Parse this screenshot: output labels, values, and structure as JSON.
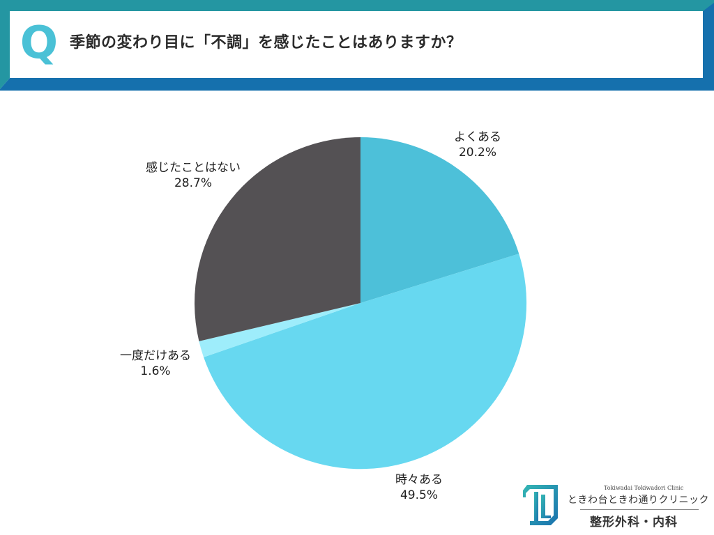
{
  "header": {
    "q_mark": "Q",
    "question": "季節の変わり目に「不調」を感じたことはありますか？",
    "colors": {
      "top_band": "#2496A2",
      "bottom_band": "#1570AD",
      "q_color": "#4AC1D6"
    }
  },
  "chart_data": {
    "type": "pie",
    "title": "季節の変わり目に「不調」を感じたことはありますか？",
    "start_angle": "12 o'clock, clockwise",
    "categories": [
      "よくある",
      "時々ある",
      "一度だけある",
      "感じたことはない"
    ],
    "values": [
      20.2,
      49.5,
      1.6,
      28.7
    ],
    "unit": "%",
    "colors": [
      "#4DC0D9",
      "#67D8F0",
      "#9EEDFB",
      "#545154"
    ],
    "labels": [
      {
        "name": "よくある",
        "value": "20.2%"
      },
      {
        "name": "時々ある",
        "value": "49.5%"
      },
      {
        "name": "一度だけある",
        "value": "1.6%"
      },
      {
        "name": "感じたことはない",
        "value": "28.7%"
      }
    ],
    "legend": "none (outer data labels)"
  },
  "logo": {
    "en": "Tokiwadai Tokiwadori Clinic",
    "jp": "ときわ台ときわ通りクリニック",
    "dept": "整形外科・内科"
  }
}
